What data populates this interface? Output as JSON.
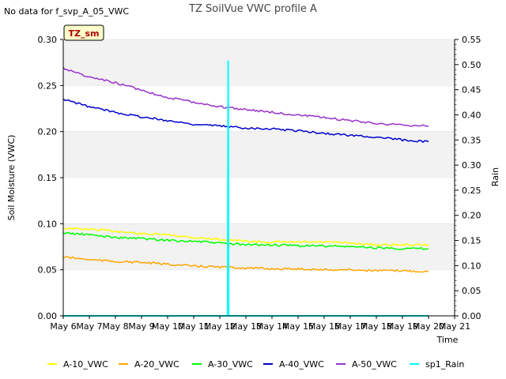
{
  "page": {
    "corner_note": "No data for f_svp_A_05_VWC"
  },
  "chart_data": {
    "type": "line",
    "title": "TZ SoilVue VWC profile A",
    "badge": "TZ_sm",
    "xlabel": "Time",
    "ylabel": "Soil Moisture (VWC)",
    "y2label": "Rain",
    "x_ticks": [
      "May 6",
      "May 7",
      "May 8",
      "May 9",
      "May 10",
      "May 11",
      "May 12",
      "May 13",
      "May 14",
      "May 15",
      "May 16",
      "May 17",
      "May 18",
      "May 19",
      "May 20",
      "May 21"
    ],
    "xlim": [
      "May 6",
      "May 21"
    ],
    "ylim": [
      0,
      0.3
    ],
    "y_ticks": [
      "0.00",
      "0.05",
      "0.10",
      "0.15",
      "0.20",
      "0.25",
      "0.30"
    ],
    "y2lim": [
      0,
      0.55
    ],
    "y2_ticks": [
      "0.00",
      "0.05",
      "0.10",
      "0.15",
      "0.20",
      "0.25",
      "0.30",
      "0.35",
      "0.40",
      "0.45",
      "0.50",
      "0.55"
    ],
    "grid": "horizontal bands",
    "legend_position": "bottom",
    "series": [
      {
        "name": "A-10_VWC",
        "color": "#ffff00",
        "axis": "left",
        "x": [
          "May 6",
          "May 7",
          "May 8",
          "May 9",
          "May 10",
          "May 11",
          "May 12",
          "May 13",
          "May 14",
          "May 15",
          "May 16",
          "May 17",
          "May 18",
          "May 19",
          "May 20"
        ],
        "values": [
          0.095,
          0.094,
          0.092,
          0.089,
          0.088,
          0.085,
          0.083,
          0.081,
          0.08,
          0.08,
          0.08,
          0.079,
          0.077,
          0.077,
          0.077
        ]
      },
      {
        "name": "A-20_VWC",
        "color": "#ffa500",
        "axis": "left",
        "x": [
          "May 6",
          "May 7",
          "May 8",
          "May 9",
          "May 10",
          "May 11",
          "May 12",
          "May 13",
          "May 14",
          "May 15",
          "May 16",
          "May 17",
          "May 18",
          "May 19",
          "May 20"
        ],
        "values": [
          0.064,
          0.061,
          0.059,
          0.058,
          0.056,
          0.054,
          0.053,
          0.052,
          0.051,
          0.051,
          0.05,
          0.05,
          0.049,
          0.049,
          0.048
        ]
      },
      {
        "name": "A-30_VWC",
        "color": "#00ff00",
        "axis": "left",
        "x": [
          "May 6",
          "May 7",
          "May 8",
          "May 9",
          "May 10",
          "May 11",
          "May 12",
          "May 13",
          "May 14",
          "May 15",
          "May 16",
          "May 17",
          "May 18",
          "May 19",
          "May 20"
        ],
        "values": [
          0.09,
          0.088,
          0.085,
          0.084,
          0.082,
          0.081,
          0.079,
          0.077,
          0.077,
          0.076,
          0.076,
          0.075,
          0.074,
          0.073,
          0.073
        ]
      },
      {
        "name": "A-40_VWC",
        "color": "#0000cc",
        "axis": "left",
        "x": [
          "May 6",
          "May 7",
          "May 8",
          "May 9",
          "May 10",
          "May 11",
          "May 12",
          "May 13",
          "May 14",
          "May 15",
          "May 16",
          "May 17",
          "May 18",
          "May 19",
          "May 20"
        ],
        "values": [
          0.235,
          0.227,
          0.221,
          0.216,
          0.212,
          0.208,
          0.206,
          0.204,
          0.203,
          0.201,
          0.198,
          0.196,
          0.194,
          0.191,
          0.189
        ]
      },
      {
        "name": "A-50_VWC",
        "color": "#9932cc",
        "axis": "left",
        "x": [
          "May 6",
          "May 7",
          "May 8",
          "May 9",
          "May 10",
          "May 11",
          "May 12",
          "May 13",
          "May 14",
          "May 15",
          "May 16",
          "May 17",
          "May 18",
          "May 19",
          "May 20"
        ],
        "values": [
          0.269,
          0.259,
          0.253,
          0.245,
          0.237,
          0.232,
          0.227,
          0.224,
          0.221,
          0.218,
          0.215,
          0.212,
          0.209,
          0.207,
          0.206
        ]
      },
      {
        "name": "sp1_Rain",
        "color": "#00ffff",
        "axis": "right",
        "x": [
          "May 6",
          "May 12.3",
          "May 12.32",
          "May 12.34",
          "May 12.36",
          "May 20"
        ],
        "values": [
          0.0,
          0.0,
          0.507,
          0.0,
          0.0,
          0.0
        ]
      }
    ]
  }
}
